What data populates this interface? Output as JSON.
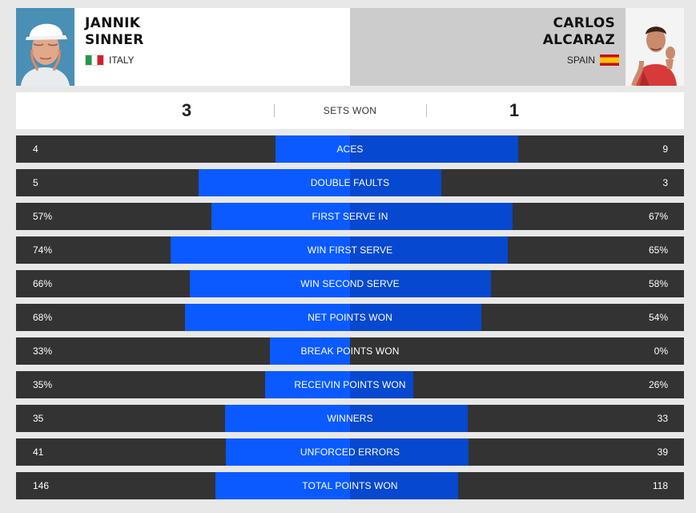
{
  "player1": {
    "first_name": "JANNIK",
    "last_name": "SINNER",
    "country": "ITALY",
    "flag_icon": "italy-flag-icon",
    "sets_won": "3"
  },
  "player2": {
    "first_name": "CARLOS",
    "last_name": "ALCARAZ",
    "country": "SPAIN",
    "flag_icon": "spain-flag-icon",
    "sets_won": "1"
  },
  "sets_label": "SETS WON",
  "colors": {
    "player1_bar": "#0a5aff",
    "player2_bar": "#0648cf",
    "row_background": "#333333",
    "player2_header": "#cccccc"
  },
  "stats": [
    {
      "label": "ACES",
      "p1": "4",
      "p2": "9",
      "p1_share": 0.308,
      "p2_share": 0.692
    },
    {
      "label": "DOUBLE FAULTS",
      "p1": "5",
      "p2": "3",
      "p1_share": 0.625,
      "p2_share": 0.375
    },
    {
      "label": "FIRST SERVE IN",
      "p1": "57%",
      "p2": "67%",
      "p1_share": 0.57,
      "p2_share": 0.67
    },
    {
      "label": "WIN FIRST SERVE",
      "p1": "74%",
      "p2": "65%",
      "p1_share": 0.74,
      "p2_share": 0.65
    },
    {
      "label": "WIN SECOND SERVE",
      "p1": "66%",
      "p2": "58%",
      "p1_share": 0.66,
      "p2_share": 0.58
    },
    {
      "label": "NET POINTS WON",
      "p1": "68%",
      "p2": "54%",
      "p1_share": 0.68,
      "p2_share": 0.54
    },
    {
      "label": "BREAK POINTS WON",
      "p1": "33%",
      "p2": "0%",
      "p1_share": 0.33,
      "p2_share": 0.0
    },
    {
      "label": "RECEIVIN POINTS WON",
      "p1": "35%",
      "p2": "26%",
      "p1_share": 0.35,
      "p2_share": 0.26
    },
    {
      "label": "WINNERS",
      "p1": "35",
      "p2": "33",
      "p1_share": 0.515,
      "p2_share": 0.485
    },
    {
      "label": "UNFORCED ERRORS",
      "p1": "41",
      "p2": "39",
      "p1_share": 0.513,
      "p2_share": 0.487
    },
    {
      "label": "TOTAL POINTS WON",
      "p1": "146",
      "p2": "118",
      "p1_share": 0.553,
      "p2_share": 0.447
    }
  ]
}
